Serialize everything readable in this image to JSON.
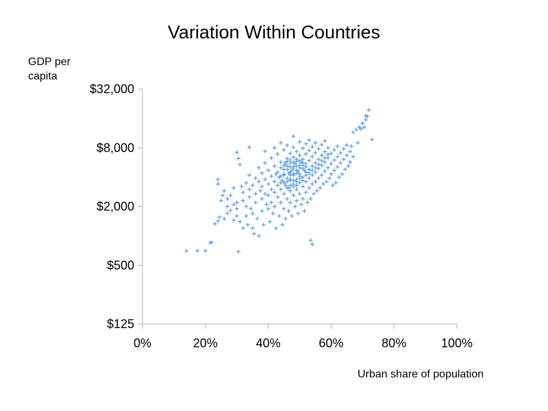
{
  "chart_data": {
    "type": "scatter",
    "title": "Variation Within Countries",
    "xlabel": "Urban share of population",
    "ylabel": "GDP per capita",
    "xlim": [
      0,
      100
    ],
    "ylim": [
      125,
      32000
    ],
    "y_scale": "log2",
    "x_ticks": [
      "0%",
      "20%",
      "40%",
      "60%",
      "80%",
      "100%"
    ],
    "x_tick_values": [
      0,
      20,
      40,
      60,
      80,
      100
    ],
    "y_ticks": [
      "$125",
      "$500",
      "$2,000",
      "$8,000",
      "$32,000"
    ],
    "y_tick_values": [
      125,
      500,
      2000,
      8000,
      32000
    ],
    "grid": false,
    "marker": "plus",
    "color": "#5b9bd5",
    "points": [
      [
        14,
        700
      ],
      [
        17.5,
        705
      ],
      [
        20,
        705
      ],
      [
        21.5,
        850
      ],
      [
        22,
        860
      ],
      [
        30.5,
        690
      ],
      [
        23,
        1330
      ],
      [
        24,
        1420
      ],
      [
        24.5,
        1560
      ],
      [
        26,
        1500
      ],
      [
        27,
        1700
      ],
      [
        27,
        2000
      ],
      [
        28,
        1820
      ],
      [
        29,
        2100
      ],
      [
        29,
        1450
      ],
      [
        30,
        2200
      ],
      [
        30,
        1900
      ],
      [
        30,
        1600
      ],
      [
        31,
        1400
      ],
      [
        32,
        1200
      ],
      [
        24,
        3400
      ],
      [
        24,
        3800
      ],
      [
        25,
        2300
      ],
      [
        25.5,
        2600
      ],
      [
        26,
        2900
      ],
      [
        27,
        2400
      ],
      [
        28,
        2600
      ],
      [
        29,
        3100
      ],
      [
        30,
        7200
      ],
      [
        30.5,
        6200
      ],
      [
        31,
        5400
      ],
      [
        31.5,
        3200
      ],
      [
        32,
        2800
      ],
      [
        32,
        2300
      ],
      [
        33,
        3500
      ],
      [
        33,
        2000
      ],
      [
        33,
        1600
      ],
      [
        33.5,
        1300
      ],
      [
        34,
        4200
      ],
      [
        34,
        3000
      ],
      [
        34,
        2500
      ],
      [
        34.5,
        1900
      ],
      [
        34,
        8100
      ],
      [
        35,
        3300
      ],
      [
        35,
        1700
      ],
      [
        35,
        1200
      ],
      [
        35.5,
        1050
      ],
      [
        36,
        3900
      ],
      [
        36,
        2700
      ],
      [
        36,
        2200
      ],
      [
        36.5,
        1500
      ],
      [
        37,
        1000
      ],
      [
        37,
        5000
      ],
      [
        37,
        3600
      ],
      [
        37.5,
        2900
      ],
      [
        38,
        4400
      ],
      [
        38,
        3200
      ],
      [
        38,
        2400
      ],
      [
        38,
        1800
      ],
      [
        38.5,
        1300
      ],
      [
        39,
        7400
      ],
      [
        39,
        5600
      ],
      [
        39,
        3800
      ],
      [
        39,
        2700
      ],
      [
        39.5,
        2100
      ],
      [
        40,
        4700
      ],
      [
        40,
        3400
      ],
      [
        40,
        2600
      ],
      [
        40,
        1900
      ],
      [
        40.5,
        1400
      ],
      [
        41,
        6300
      ],
      [
        41,
        4100
      ],
      [
        41,
        3000
      ],
      [
        41,
        2200
      ],
      [
        41.5,
        1700
      ],
      [
        42,
        8000
      ],
      [
        42,
        5200
      ],
      [
        42,
        3600
      ],
      [
        42,
        2800
      ],
      [
        42,
        2000
      ],
      [
        42.5,
        1200
      ],
      [
        43,
        6900
      ],
      [
        43,
        4500
      ],
      [
        43,
        3300
      ],
      [
        43,
        2500
      ],
      [
        43.5,
        1600
      ],
      [
        44,
        9000
      ],
      [
        44,
        5700
      ],
      [
        44,
        4100
      ],
      [
        44,
        3000
      ],
      [
        44,
        2200
      ],
      [
        44.5,
        1300
      ],
      [
        45,
        7600
      ],
      [
        45,
        5300
      ],
      [
        45,
        4200
      ],
      [
        45,
        3500
      ],
      [
        45,
        2700
      ],
      [
        45,
        1900
      ],
      [
        45.5,
        1500
      ],
      [
        46,
        8500
      ],
      [
        46,
        6200
      ],
      [
        46,
        4800
      ],
      [
        46,
        3900
      ],
      [
        46,
        3100
      ],
      [
        46,
        2400
      ],
      [
        46.5,
        1800
      ],
      [
        47,
        7000
      ],
      [
        47,
        5600
      ],
      [
        47,
        4500
      ],
      [
        47,
        3700
      ],
      [
        47,
        2900
      ],
      [
        47,
        2200
      ],
      [
        47.5,
        1600
      ],
      [
        48,
        10500
      ],
      [
        48,
        8100
      ],
      [
        48,
        6400
      ],
      [
        48,
        5100
      ],
      [
        48,
        4200
      ],
      [
        48,
        3400
      ],
      [
        48,
        2600
      ],
      [
        48.5,
        2000
      ],
      [
        49,
        7300
      ],
      [
        49,
        5800
      ],
      [
        49,
        4700
      ],
      [
        49,
        3800
      ],
      [
        49,
        3000
      ],
      [
        49,
        2300
      ],
      [
        49.5,
        1700
      ],
      [
        50,
        9200
      ],
      [
        50,
        6700
      ],
      [
        50,
        5300
      ],
      [
        50,
        4300
      ],
      [
        50,
        3500
      ],
      [
        50,
        2700
      ],
      [
        50.5,
        2100
      ],
      [
        51,
        7900
      ],
      [
        51,
        6100
      ],
      [
        51,
        4900
      ],
      [
        51,
        4000
      ],
      [
        51,
        3200
      ],
      [
        51,
        2400
      ],
      [
        51.5,
        1800
      ],
      [
        52,
        8800
      ],
      [
        52,
        6900
      ],
      [
        52,
        5500
      ],
      [
        52,
        4500
      ],
      [
        52,
        3600
      ],
      [
        52,
        2800
      ],
      [
        52.5,
        2200
      ],
      [
        53,
        9600
      ],
      [
        53,
        7500
      ],
      [
        53,
        5900
      ],
      [
        53,
        4800
      ],
      [
        53,
        3900
      ],
      [
        53,
        3100
      ],
      [
        53.5,
        2400
      ],
      [
        53.5,
        900
      ],
      [
        54,
        8200
      ],
      [
        54,
        6500
      ],
      [
        54,
        5200
      ],
      [
        54,
        4200
      ],
      [
        54,
        3400
      ],
      [
        54,
        820
      ],
      [
        54.5,
        2700
      ],
      [
        55,
        9000
      ],
      [
        55,
        7100
      ],
      [
        55,
        5600
      ],
      [
        55,
        4500
      ],
      [
        55,
        3600
      ],
      [
        55.5,
        2900
      ],
      [
        56,
        7800
      ],
      [
        56,
        6100
      ],
      [
        56,
        4900
      ],
      [
        56,
        3900
      ],
      [
        56.5,
        3100
      ],
      [
        57,
        8600
      ],
      [
        57,
        6700
      ],
      [
        57,
        5300
      ],
      [
        57,
        4200
      ],
      [
        57.5,
        3400
      ],
      [
        58,
        9400
      ],
      [
        58,
        7300
      ],
      [
        58,
        5700
      ],
      [
        58,
        4600
      ],
      [
        58.5,
        3600
      ],
      [
        59,
        8000
      ],
      [
        59,
        6300
      ],
      [
        59,
        5000
      ],
      [
        59.5,
        3900
      ],
      [
        60,
        7000
      ],
      [
        60,
        5500
      ],
      [
        60,
        4300
      ],
      [
        60.5,
        3300
      ],
      [
        61,
        7600
      ],
      [
        61,
        6000
      ],
      [
        61,
        4700
      ],
      [
        61.5,
        3500
      ],
      [
        62,
        8300
      ],
      [
        62,
        6500
      ],
      [
        62,
        5100
      ],
      [
        62.5,
        4000
      ],
      [
        63,
        7100
      ],
      [
        63,
        5600
      ],
      [
        63.5,
        4300
      ],
      [
        64,
        7800
      ],
      [
        64,
        6100
      ],
      [
        64.5,
        4800
      ],
      [
        65,
        8500
      ],
      [
        65,
        6700
      ],
      [
        65.5,
        5200
      ],
      [
        66,
        7300
      ],
      [
        66,
        5700
      ],
      [
        66.5,
        8300
      ],
      [
        67,
        6500
      ],
      [
        67,
        11500
      ],
      [
        68,
        12300
      ],
      [
        68.5,
        9000
      ],
      [
        69,
        13000
      ],
      [
        69.5,
        12500
      ],
      [
        70,
        14200
      ],
      [
        70.5,
        13000
      ],
      [
        71,
        15500
      ],
      [
        71,
        17000
      ],
      [
        71.5,
        16800
      ],
      [
        72,
        19500
      ],
      [
        73,
        9700
      ],
      [
        44,
        5000
      ],
      [
        45,
        4800
      ],
      [
        45.5,
        5600
      ],
      [
        46,
        5200
      ],
      [
        46.5,
        4400
      ],
      [
        47,
        5100
      ],
      [
        47.5,
        4700
      ],
      [
        48,
        4900
      ],
      [
        48.5,
        5500
      ],
      [
        49,
        5200
      ],
      [
        49.5,
        4600
      ],
      [
        50,
        5000
      ],
      [
        50.5,
        5700
      ],
      [
        51,
        5300
      ],
      [
        51.5,
        4700
      ],
      [
        52,
        5100
      ],
      [
        47,
        4200
      ],
      [
        48,
        4300
      ],
      [
        49,
        4400
      ],
      [
        50,
        4100
      ],
      [
        46,
        3600
      ],
      [
        47,
        3800
      ],
      [
        48,
        3700
      ],
      [
        49,
        3600
      ],
      [
        50,
        3900
      ],
      [
        45,
        4300
      ],
      [
        44.5,
        3700
      ],
      [
        43.5,
        4000
      ],
      [
        42.5,
        4300
      ],
      [
        46,
        5800
      ],
      [
        47,
        6000
      ],
      [
        48,
        5700
      ],
      [
        49,
        6100
      ],
      [
        50,
        5900
      ],
      [
        51,
        5600
      ],
      [
        47,
        3300
      ],
      [
        48,
        3200
      ],
      [
        46.5,
        3100
      ],
      [
        45.5,
        3300
      ],
      [
        44,
        3500
      ],
      [
        49,
        3300
      ],
      [
        51,
        3700
      ],
      [
        52,
        4200
      ],
      [
        53,
        4400
      ],
      [
        54,
        4700
      ],
      [
        55,
        5000
      ],
      [
        56,
        5400
      ],
      [
        57,
        5900
      ],
      [
        58,
        6300
      ],
      [
        59,
        6800
      ]
    ]
  }
}
